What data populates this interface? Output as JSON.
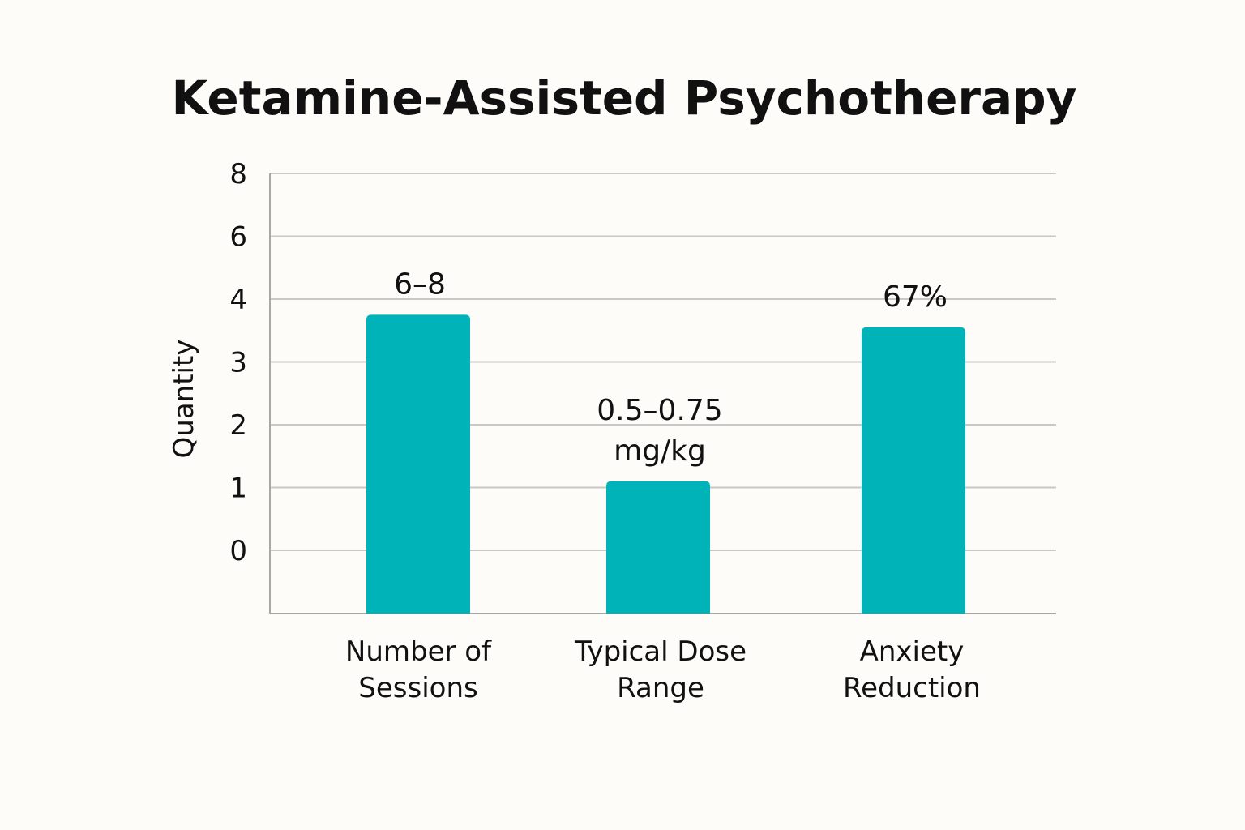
{
  "chart_data": {
    "type": "bar",
    "title": "Ketamine-Assisted Psychotherapy",
    "xlabel": "",
    "ylabel": "Quantity",
    "yticks": [
      0,
      1,
      2,
      3,
      4,
      6,
      8
    ],
    "ytick_labels": [
      "0",
      "1",
      "2",
      "3",
      "4",
      "6",
      "8"
    ],
    "grid": true,
    "legend": "none",
    "bar_color": "#00b3b9",
    "categories": [
      [
        "Number of",
        "Sessions"
      ],
      [
        "Typical Dose",
        "Range"
      ],
      [
        "Anxiety",
        "Reduction"
      ]
    ],
    "values": [
      3.75,
      1.1,
      3.55
    ],
    "data_labels": [
      [
        "6–8"
      ],
      [
        "0.5–0.75",
        "mg/kg"
      ],
      [
        "67%"
      ]
    ]
  }
}
